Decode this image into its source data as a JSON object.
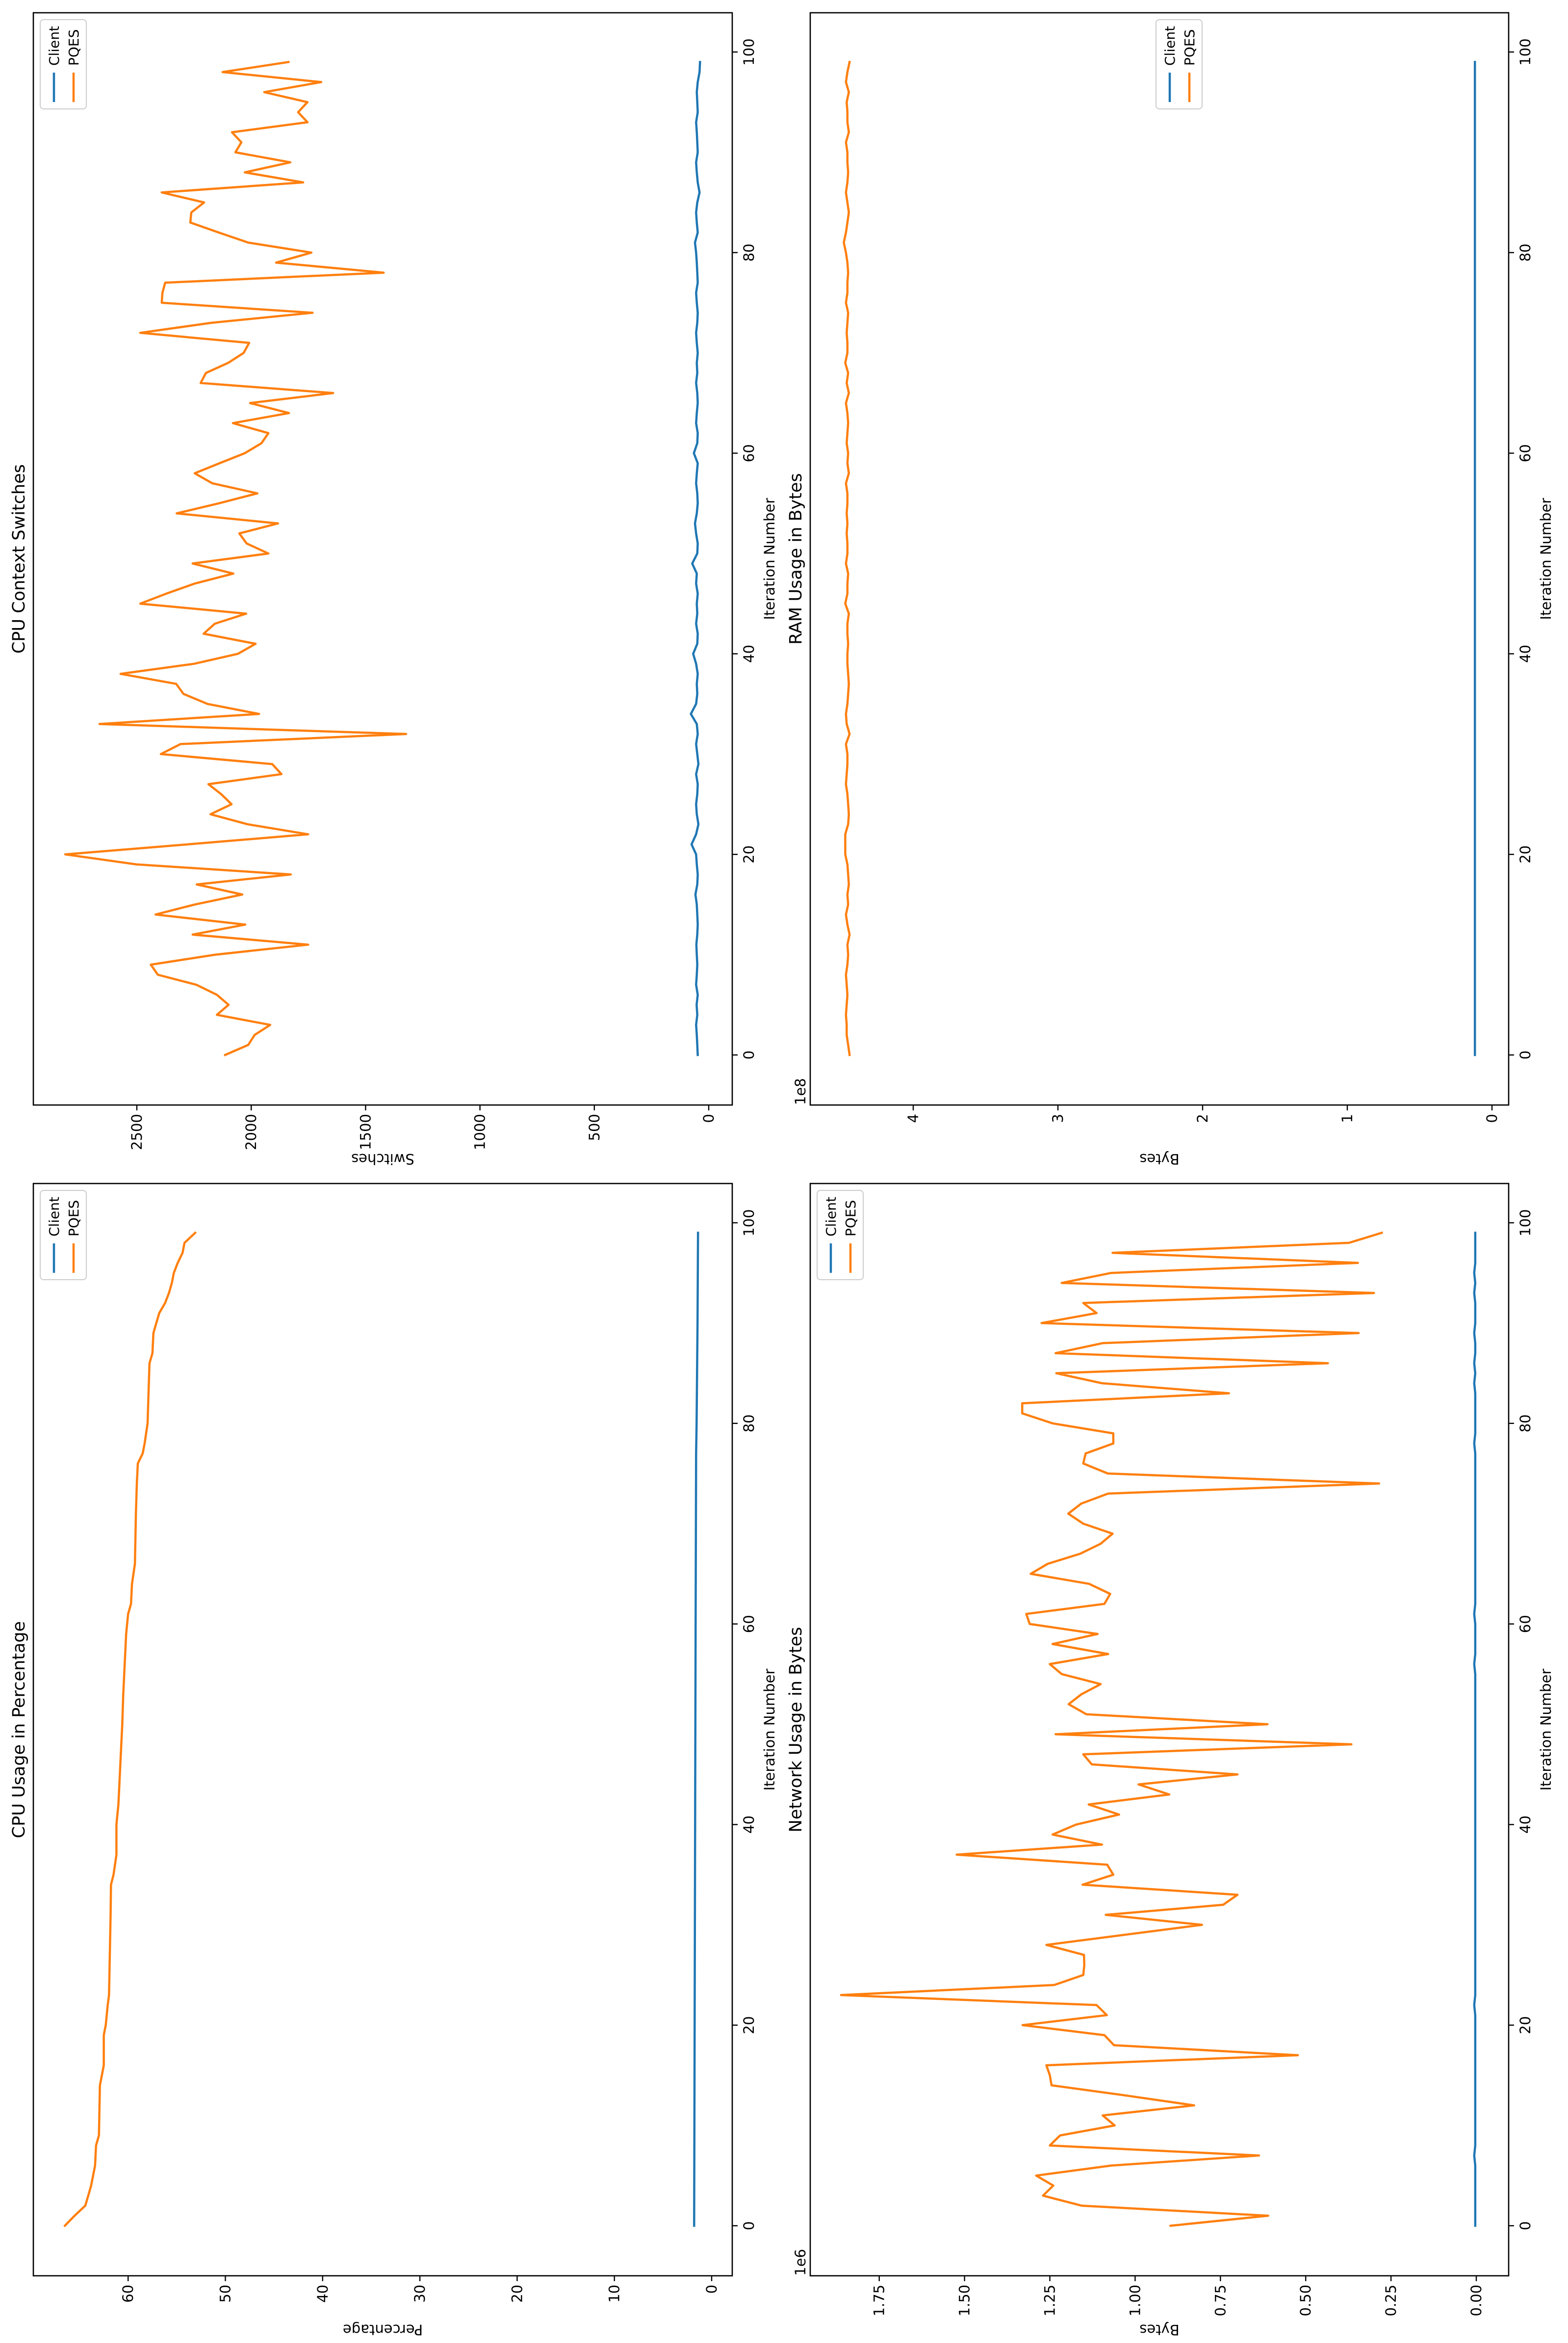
{
  "figure": {
    "orientation": "rotated 90deg counter-clockwise",
    "colors": {
      "client": "#1f77b4",
      "pqes": "#ff7f0e",
      "axes": "#000000",
      "legend_border": "#cccccc"
    }
  },
  "chart_data": [
    {
      "id": "cpu_usage",
      "type": "line",
      "title": "CPU Usage in Percentage",
      "xlabel": "Iteration Number",
      "ylabel": "Percentage",
      "xlim": [
        -5,
        104
      ],
      "ylim": [
        -2,
        70
      ],
      "xticks": [
        0,
        20,
        40,
        60,
        80,
        100
      ],
      "yticks": [
        0,
        10,
        20,
        30,
        40,
        50,
        60
      ],
      "ytick_labels": [
        "0",
        "10",
        "20",
        "30",
        "40",
        "50",
        "60"
      ],
      "offset_text": "",
      "legend": {
        "position": "upper right",
        "entries": [
          "Client",
          "PQES"
        ]
      },
      "grid": false,
      "series": [
        {
          "name": "Client",
          "color": "#1f77b4",
          "x": [
            0,
            20,
            40,
            60,
            77,
            80,
            90,
            99
          ],
          "values": [
            1.8,
            1.75,
            1.7,
            1.65,
            1.6,
            1.55,
            1.45,
            1.4
          ]
        },
        {
          "name": "PQES",
          "color": "#ff7f0e",
          "x": [
            0,
            1,
            2,
            3,
            4,
            5,
            6,
            8,
            9,
            14,
            15,
            16,
            19,
            20,
            22,
            23,
            31,
            34,
            35,
            37,
            40,
            41,
            42,
            44,
            48,
            50,
            53,
            59,
            61,
            62,
            64,
            66,
            71,
            74,
            76,
            77,
            78,
            80,
            83,
            86,
            87,
            89,
            90,
            91,
            92,
            93,
            94,
            95,
            96,
            97,
            98,
            99
          ],
          "values": [
            66.5,
            65.5,
            64.4,
            64.1,
            63.8,
            63.6,
            63.4,
            63.3,
            63.0,
            62.9,
            62.7,
            62.5,
            62.5,
            62.3,
            62.1,
            61.96,
            61.8,
            61.76,
            61.5,
            61.2,
            61.2,
            61.1,
            61.0,
            60.9,
            60.7,
            60.6,
            60.5,
            60.2,
            60.0,
            59.7,
            59.6,
            59.3,
            59.2,
            59.1,
            59.0,
            58.5,
            58.3,
            58.0,
            57.9,
            57.8,
            57.5,
            57.4,
            57.1,
            56.8,
            56.2,
            55.8,
            55.5,
            55.3,
            54.9,
            54.4,
            54.2,
            53.1
          ]
        }
      ]
    },
    {
      "id": "cpu_context_switches",
      "type": "line",
      "title": "CPU Context Switches",
      "xlabel": "Iteration Number",
      "ylabel": "Switches",
      "xlim": [
        -5,
        104
      ],
      "ylim": [
        -100,
        2950
      ],
      "xticks": [
        0,
        20,
        40,
        60,
        80,
        100
      ],
      "yticks": [
        0,
        500,
        1000,
        1500,
        2000,
        2500
      ],
      "ytick_labels": [
        "0",
        "500",
        "1000",
        "1500",
        "2000",
        "2500"
      ],
      "offset_text": "",
      "legend": {
        "position": "upper right",
        "entries": [
          "Client",
          "PQES"
        ]
      },
      "grid": false,
      "series": [
        {
          "name": "Client",
          "color": "#1f77b4",
          "values": [
            48,
            50,
            52,
            55,
            50,
            53,
            48,
            55,
            52,
            50,
            52,
            54,
            50,
            48,
            50,
            52,
            58,
            50,
            48,
            52,
            55,
            75,
            55,
            45,
            52,
            55,
            50,
            48,
            55,
            45,
            50,
            55,
            48,
            52,
            78,
            55,
            50,
            52,
            48,
            55,
            68,
            50,
            48,
            55,
            50,
            52,
            48,
            55,
            52,
            72,
            50,
            48,
            55,
            60,
            52,
            48,
            50,
            55,
            52,
            48,
            65,
            50,
            48,
            55,
            52,
            48,
            50,
            55,
            50,
            52,
            48,
            52,
            55,
            50,
            48,
            52,
            55,
            48,
            50,
            52,
            55,
            60,
            48,
            52,
            55,
            50,
            40,
            48,
            52,
            55,
            48,
            50,
            52,
            55,
            48,
            50,
            52,
            48,
            40,
            38
          ]
        },
        {
          "name": "PQES",
          "color": "#ff7f0e",
          "values": [
            2114,
            2013,
            1985,
            1917,
            2150,
            2099,
            2150,
            2240,
            2408,
            2439,
            2157,
            1751,
            2256,
            2026,
            2418,
            2247,
            2039,
            2238,
            1827,
            2502,
            2813,
            2277,
            1751,
            2015,
            2178,
            2086,
            2131,
            2187,
            1868,
            1908,
            2395,
            2309,
            1323,
            2663,
            1966,
            2191,
            2296,
            2328,
            2571,
            2250,
            2058,
            1981,
            2208,
            2159,
            2022,
            2485,
            2371,
            2247,
            2078,
            2256,
            1925,
            2020,
            2052,
            1883,
            2326,
            2142,
            1973,
            2170,
            2247,
            2138,
            2028,
            1955,
            1925,
            2080,
            1835,
            2005,
            1642,
            2221,
            2198,
            2101,
            2033,
            2009,
            2485,
            2174,
            1732,
            2391,
            2388,
            2376,
            1421,
            1891,
            1737,
            2013,
            2142,
            2266,
            2262,
            2206,
            2391,
            1773,
            2028,
            1829,
            2069,
            2043,
            2084,
            1754,
            1795,
            1754,
            1943,
            1694,
            2125,
            1837
          ]
        }
      ]
    },
    {
      "id": "network_usage",
      "type": "line",
      "title": "Network Usage in Bytes",
      "xlabel": "Iteration Number",
      "ylabel": "Bytes",
      "xlim": [
        -5,
        104
      ],
      "ylim": [
        -0.09,
        1.95
      ],
      "xticks": [
        0,
        20,
        40,
        60,
        80,
        100
      ],
      "yticks": [
        0,
        0.25,
        0.5,
        0.75,
        1.0,
        1.25,
        1.5,
        1.75
      ],
      "ytick_labels": [
        "0.00",
        "0.25",
        "0.50",
        "0.75",
        "1.00",
        "1.25",
        "1.50",
        "1.75"
      ],
      "offset_text": "1e6",
      "legend": {
        "position": "upper right",
        "entries": [
          "Client",
          "PQES"
        ]
      },
      "grid": false,
      "series": [
        {
          "name": "Client",
          "color": "#1f77b4",
          "unit_scale": "1e6",
          "values": [
            0.003,
            0.003,
            0.003,
            0.003,
            0.003,
            0.003,
            0.003,
            0.006,
            0.003,
            0.003,
            0.003,
            0.003,
            0.003,
            0.003,
            0.003,
            0.003,
            0.003,
            0.003,
            0.003,
            0.003,
            0.003,
            0.003,
            0.006,
            0.003,
            0.003,
            0.003,
            0.003,
            0.003,
            0.003,
            0.003,
            0.003,
            0.003,
            0.003,
            0.003,
            0.003,
            0.003,
            0.003,
            0.003,
            0.003,
            0.003,
            0.003,
            0.003,
            0.003,
            0.003,
            0.003,
            0.003,
            0.003,
            0.003,
            0.003,
            0.003,
            0.003,
            0.003,
            0.003,
            0.003,
            0.003,
            0.003,
            0.006,
            0.003,
            0.003,
            0.003,
            0.003,
            0.006,
            0.003,
            0.003,
            0.003,
            0.003,
            0.003,
            0.003,
            0.003,
            0.003,
            0.003,
            0.003,
            0.003,
            0.003,
            0.003,
            0.003,
            0.003,
            0.003,
            0.006,
            0.003,
            0.003,
            0.003,
            0.003,
            0.003,
            0.006,
            0.003,
            0.006,
            0.003,
            0.003,
            0.006,
            0.003,
            0.003,
            0.003,
            0.006,
            0.003,
            0.006,
            0.003,
            0.003,
            0.003,
            0.003
          ]
        },
        {
          "name": "PQES",
          "color": "#ff7f0e",
          "unit_scale": "1e6",
          "values": [
            0.896,
            0.61,
            1.157,
            1.27,
            1.24,
            1.29,
            1.07,
            0.637,
            1.25,
            1.22,
            1.06,
            1.095,
            0.827,
            1.03,
            1.245,
            1.25,
            1.26,
            0.523,
            1.062,
            1.09,
            1.33,
            1.083,
            1.113,
            1.862,
            1.237,
            1.152,
            1.149,
            1.15,
            1.26,
            1.032,
            0.804,
            1.086,
            0.742,
            0.7,
            1.154,
            1.064,
            1.082,
            1.523,
            1.097,
            1.242,
            1.173,
            1.047,
            1.136,
            0.9,
            0.99,
            0.7,
            1.127,
            1.152,
            0.366,
            1.233,
            0.612,
            1.143,
            1.195,
            1.157,
            1.101,
            1.215,
            1.25,
            1.079,
            1.242,
            1.11,
            1.309,
            1.319,
            1.09,
            1.073,
            1.135,
            1.306,
            1.256,
            1.161,
            1.101,
            1.066,
            1.152,
            1.196,
            1.158,
            1.079,
            0.285,
            1.08,
            1.152,
            1.145,
            1.064,
            1.064,
            1.242,
            1.331,
            1.331,
            0.725,
            1.097,
            1.231,
            0.435,
            1.233,
            1.095,
            0.345,
            1.274,
            1.113,
            1.152,
            0.3,
            1.215,
            1.07,
            0.347,
            1.066,
            0.373,
            0.277
          ]
        }
      ]
    },
    {
      "id": "ram_usage",
      "type": "line",
      "title": "RAM Usage in Bytes",
      "xlabel": "Iteration Number",
      "ylabel": "Bytes",
      "xlim": [
        -5,
        104
      ],
      "ylim": [
        -0.11,
        4.66
      ],
      "xticks": [
        0,
        20,
        40,
        60,
        80,
        100
      ],
      "yticks": [
        0,
        1,
        2,
        3,
        4
      ],
      "ytick_labels": [
        "0",
        "1",
        "2",
        "3",
        "4"
      ],
      "offset_text": "1e8",
      "legend": {
        "position": "center right",
        "entries": [
          "Client",
          "PQES"
        ]
      },
      "grid": false,
      "series": [
        {
          "name": "Client",
          "color": "#1f77b4",
          "unit_scale": "1e8",
          "values": [
            0.118,
            0.118,
            0.118,
            0.118,
            0.118,
            0.118,
            0.118,
            0.118,
            0.118,
            0.118,
            0.118,
            0.118,
            0.118,
            0.118,
            0.118,
            0.118,
            0.118,
            0.118,
            0.118,
            0.118,
            0.118,
            0.118,
            0.118,
            0.118,
            0.118,
            0.118,
            0.118,
            0.118,
            0.118,
            0.118,
            0.118,
            0.118,
            0.118,
            0.118,
            0.118,
            0.118,
            0.118,
            0.118,
            0.118,
            0.118,
            0.118,
            0.118,
            0.118,
            0.118,
            0.118,
            0.118,
            0.118,
            0.118,
            0.118,
            0.118,
            0.118,
            0.118,
            0.118,
            0.118,
            0.118,
            0.118,
            0.118,
            0.118,
            0.118,
            0.118,
            0.118,
            0.118,
            0.118,
            0.118,
            0.118,
            0.118,
            0.118,
            0.118,
            0.118,
            0.118,
            0.118,
            0.118,
            0.118,
            0.118,
            0.118,
            0.118,
            0.118,
            0.118,
            0.118,
            0.118,
            0.118,
            0.118,
            0.118,
            0.118,
            0.118,
            0.118,
            0.118,
            0.118,
            0.118,
            0.118,
            0.118,
            0.118,
            0.118,
            0.118,
            0.118,
            0.118,
            0.118,
            0.118,
            0.118,
            0.118
          ]
        },
        {
          "name": "PQES",
          "color": "#ff7f0e",
          "unit_scale": "1e8",
          "values": [
            4.44,
            4.45,
            4.46,
            4.46,
            4.465,
            4.46,
            4.455,
            4.46,
            4.465,
            4.455,
            4.45,
            4.455,
            4.44,
            4.455,
            4.465,
            4.45,
            4.455,
            4.445,
            4.45,
            4.455,
            4.47,
            4.47,
            4.47,
            4.45,
            4.445,
            4.45,
            4.455,
            4.465,
            4.46,
            4.455,
            4.455,
            4.465,
            4.44,
            4.46,
            4.465,
            4.455,
            4.45,
            4.445,
            4.45,
            4.455,
            4.455,
            4.45,
            4.455,
            4.455,
            4.445,
            4.47,
            4.455,
            4.455,
            4.45,
            4.465,
            4.455,
            4.455,
            4.46,
            4.455,
            4.46,
            4.455,
            4.455,
            4.465,
            4.445,
            4.455,
            4.45,
            4.46,
            4.455,
            4.45,
            4.455,
            4.465,
            4.445,
            4.46,
            4.45,
            4.47,
            4.455,
            4.455,
            4.46,
            4.455,
            4.45,
            4.465,
            4.455,
            4.455,
            4.45,
            4.455,
            4.465,
            4.48,
            4.465,
            4.455,
            4.445,
            4.455,
            4.465,
            4.455,
            4.45,
            4.455,
            4.455,
            4.465,
            4.445,
            4.455,
            4.455,
            4.46,
            4.445,
            4.465,
            4.455,
            4.44
          ]
        }
      ]
    }
  ]
}
